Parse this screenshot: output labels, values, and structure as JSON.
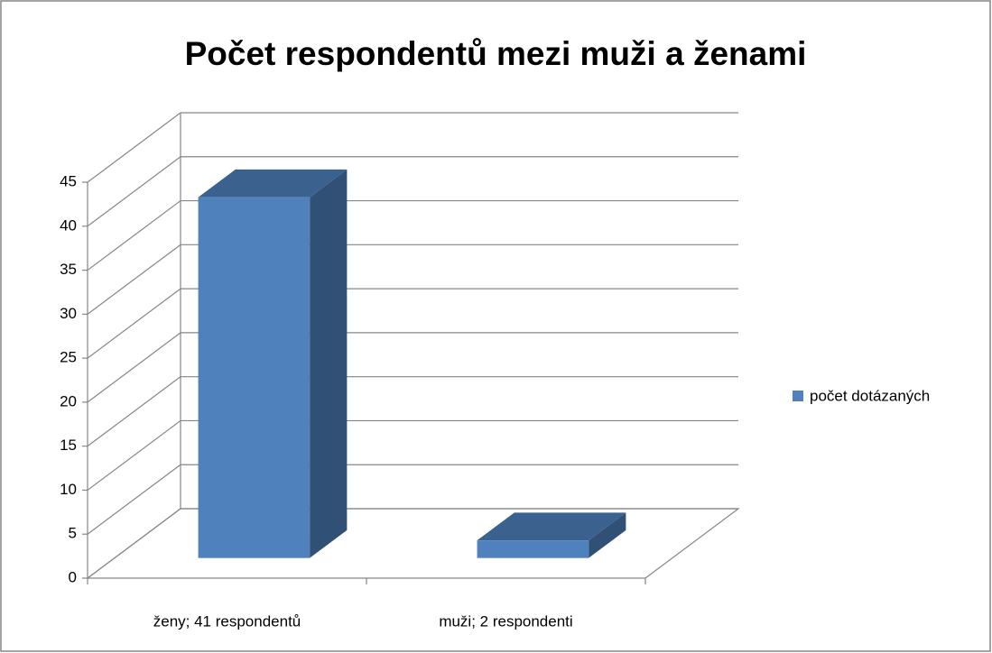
{
  "chart_data": {
    "type": "bar3d",
    "title": "Počet respondentů mezi muži a ženami",
    "categories": [
      "ženy; 41 respondentů",
      "muži; 2 respondenti"
    ],
    "series": [
      {
        "name": "počet dotázaných",
        "color": "#4f81bd",
        "values": [
          41,
          2
        ]
      }
    ],
    "ylim": [
      0,
      45
    ],
    "yticks": [
      0,
      5,
      10,
      15,
      20,
      25,
      30,
      35,
      40,
      45
    ],
    "grid": true,
    "legend": "right"
  }
}
